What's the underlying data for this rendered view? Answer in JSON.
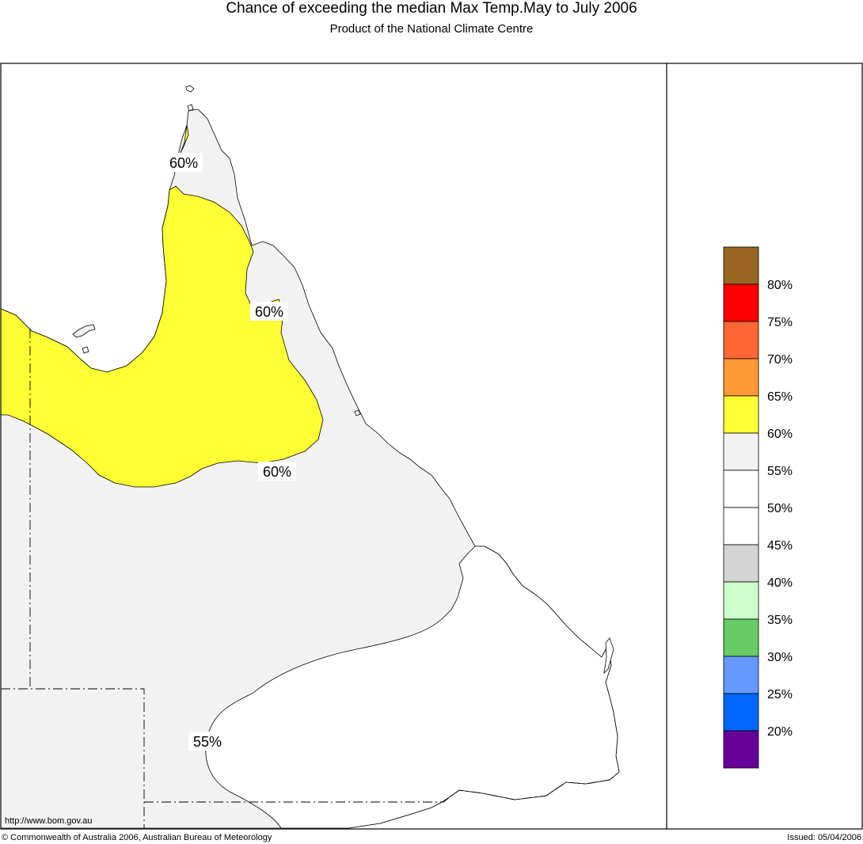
{
  "header": {
    "title": "Chance of exceeding the median Max Temp.May to July 2006",
    "subtitle": "Product of the National Climate Centre"
  },
  "colors": {
    "yellow_zone": "#ffff33",
    "grey_zone": "#f2f2f2",
    "sea": "#ffffff"
  },
  "map": {
    "contour_labels": [
      "60%",
      "60%",
      "60%",
      "55%"
    ],
    "url_text": "http://www.bom.gov.au"
  },
  "legend": {
    "swatches": [
      {
        "color": "#996622"
      },
      {
        "color": "#ff0000"
      },
      {
        "color": "#ff6633"
      },
      {
        "color": "#ff9933"
      },
      {
        "color": "#ffff33"
      },
      {
        "color": "#f2f2f2"
      },
      {
        "color": "#ffffff"
      },
      {
        "color": "#ffffff"
      },
      {
        "color": "#d4d4d4"
      },
      {
        "color": "#ccffcc"
      },
      {
        "color": "#66cc66"
      },
      {
        "color": "#6699ff"
      },
      {
        "color": "#0066ff"
      },
      {
        "color": "#660099"
      }
    ],
    "labels": [
      "80%",
      "75%",
      "70%",
      "65%",
      "60%",
      "55%",
      "50%",
      "45%",
      "40%",
      "35%",
      "30%",
      "25%",
      "20%"
    ]
  },
  "footer": {
    "copyright": "© Commonwealth of Australia 2006, Australian Bureau of Meteorology",
    "issued": "Issued: 05/04/2006"
  }
}
